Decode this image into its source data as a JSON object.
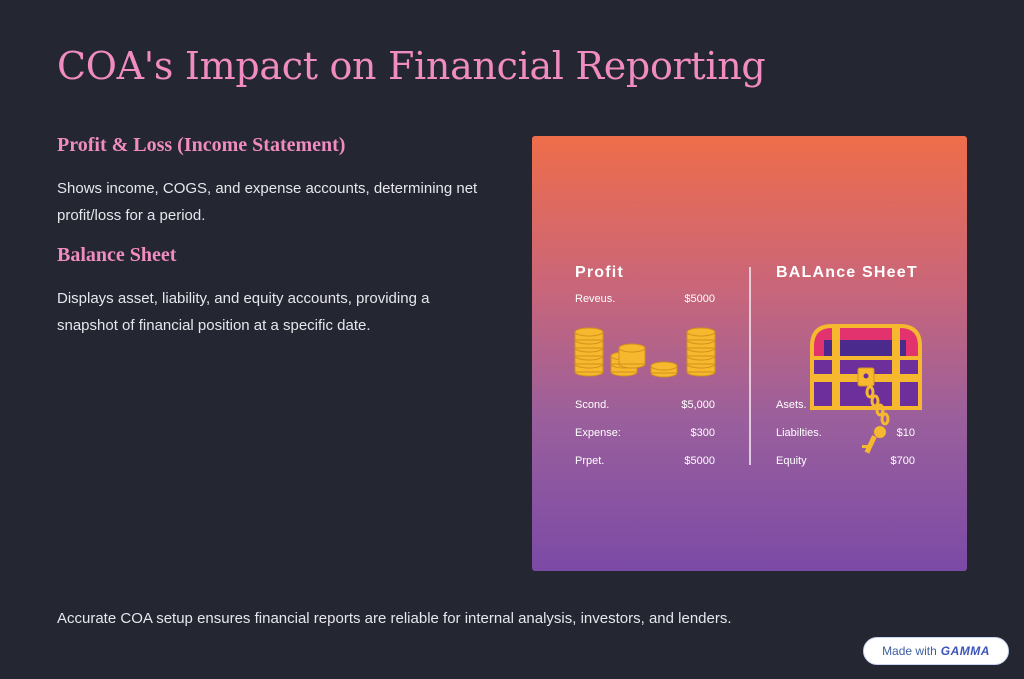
{
  "title": "COA's Impact on Financial Reporting",
  "sections": [
    {
      "heading": "Profit & Loss (Income Statement)",
      "text_line1": "Shows income, COGS, and expense accounts, determining net",
      "text_line2": "profit/loss for a period."
    },
    {
      "heading": "Balance Sheet",
      "text_line1": "Displays asset, liability, and equity accounts, providing a",
      "text_line2": "snapshot of financial position at a specific date."
    }
  ],
  "footer": "Accurate COA setup ensures financial reports are reliable for internal analysis, investors, and lenders.",
  "badge": {
    "prefix": "Made with",
    "brand": "GAMMA"
  },
  "illustration": {
    "left_heading": "Profit",
    "right_heading": "BALAnce SHeeT",
    "left_top_label": "Reveus.",
    "left_top_value": "$5000",
    "left_rows": [
      {
        "label": "Scond.",
        "value": "$5,000"
      },
      {
        "label": "Expense:",
        "value": "$300"
      },
      {
        "label": "Prpet.",
        "value": "$5000"
      }
    ],
    "right_rows": [
      {
        "label": "Asets.",
        "value": ""
      },
      {
        "label": "Liabilties.",
        "value": "$10"
      },
      {
        "label": "Equity",
        "value": "$700"
      }
    ]
  }
}
